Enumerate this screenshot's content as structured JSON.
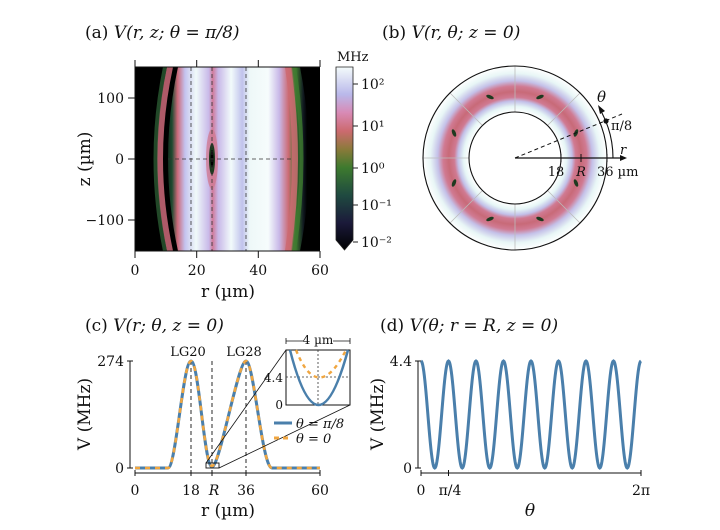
{
  "figure": {
    "panels": [
      {
        "id": "a",
        "title_prefix": "(a)",
        "title": "V(r, z; θ = π/8)"
      },
      {
        "id": "b",
        "title_prefix": "(b)",
        "title": "V(r, θ; z = 0)"
      },
      {
        "id": "c",
        "title_prefix": "(c)",
        "title": "V(r; θ, z = 0)"
      },
      {
        "id": "d",
        "title_prefix": "(d)",
        "title": "V(θ; r = R, z = 0)"
      }
    ]
  },
  "panel_a": {
    "xlabel": "r (µm)",
    "ylabel": "z (µm)",
    "xticks": [
      "0",
      "20",
      "40",
      "60"
    ],
    "yticks": [
      "100",
      "0",
      "−100"
    ],
    "colorbar": {
      "unit": "MHz",
      "ticks": [
        "10²",
        "10¹",
        "10⁰",
        "10⁻¹",
        "10⁻²"
      ]
    }
  },
  "panel_b": {
    "labels": {
      "r_inner": "18",
      "r_mid": "R",
      "r_outer": "36 µm",
      "r_axis": "r",
      "theta_axis": "θ",
      "theta_marker": "π/8"
    }
  },
  "panel_c": {
    "xlabel": "r (µm)",
    "ylabel": "V (MHz)",
    "xticks": [
      "0",
      "18",
      "R",
      "36",
      "60"
    ],
    "yticks": [
      "274",
      "0"
    ],
    "peak_labels": [
      "LG20",
      "LG28"
    ],
    "inset": {
      "width_label": "4 µm",
      "yticks": [
        "4.4",
        "0"
      ]
    },
    "legend": [
      {
        "label": "θ = π/8",
        "style": "solid",
        "color": "#4a7fab"
      },
      {
        "label": "θ = 0",
        "style": "dashed",
        "color": "#f0a640"
      }
    ]
  },
  "panel_d": {
    "xlabel": "θ",
    "ylabel": "V (MHz)",
    "xticks": [
      "0",
      "π/4",
      "2π"
    ],
    "yticks": [
      "4.4",
      "0"
    ]
  },
  "chart_data": [
    {
      "type": "heatmap",
      "title": "(a) V(r,z;θ=π/8)",
      "xlabel": "r (µm)",
      "ylabel": "z (µm)",
      "xlim": [
        0,
        60
      ],
      "ylim": [
        -150,
        150
      ],
      "colorbar": {
        "label": "MHz",
        "scale": "log",
        "range": [
          0.01,
          274
        ]
      },
      "annotations": [
        "dashed vertical lines at r=18, R≈25, 36",
        "dashed horizontal line at z=0"
      ]
    },
    {
      "type": "heatmap",
      "title": "(b) V(r,θ;z=0)",
      "polar": true,
      "radial_marks": [
        18,
        "R",
        36
      ],
      "angle_mark": "π/8",
      "description": "ring between r=18 and r=36 µm with 8 dark minima near r=R"
    },
    {
      "type": "line",
      "title": "(c) V(r;θ,z=0)",
      "xlabel": "r (µm)",
      "ylabel": "V (MHz)",
      "xlim": [
        0,
        60
      ],
      "ylim": [
        0,
        274
      ],
      "series": [
        {
          "name": "θ = π/8",
          "x": [
            0,
            10,
            14,
            18,
            22,
            25,
            29,
            36,
            43,
            47,
            60
          ],
          "values": [
            0,
            0,
            60,
            274,
            60,
            0,
            60,
            274,
            60,
            0,
            0
          ]
        },
        {
          "name": "θ = 0",
          "x": [
            0,
            10,
            14,
            18,
            22,
            25,
            29,
            36,
            43,
            47,
            60
          ],
          "values": [
            0,
            0,
            60,
            274,
            60,
            4.4,
            60,
            274,
            60,
            0,
            0
          ]
        }
      ],
      "annotations": [
        "LG20 at r=18",
        "LG28 at r=36",
        "inset: 4 µm window around R, y 0–4.4"
      ]
    },
    {
      "type": "line",
      "title": "(d) V(θ;r=R,z=0)",
      "xlabel": "θ",
      "ylabel": "V (MHz)",
      "xlim": [
        0,
        6.283
      ],
      "ylim": [
        0,
        4.4
      ],
      "series": [
        {
          "name": "V",
          "function": "4.4·cos²(4θ)",
          "periods": 8
        }
      ]
    }
  ]
}
